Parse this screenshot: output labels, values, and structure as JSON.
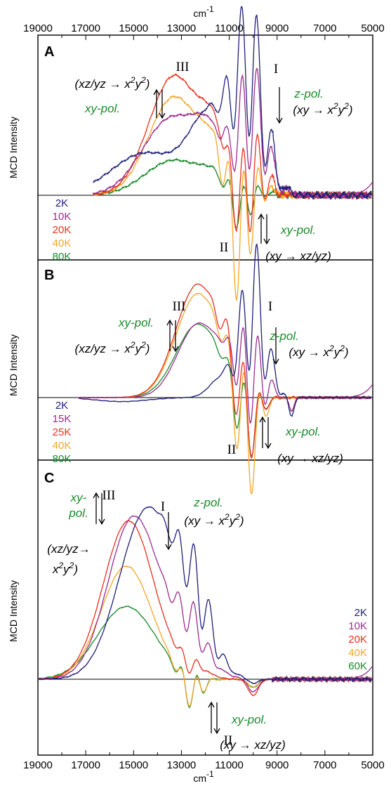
{
  "chart_data": {
    "type": "line",
    "top_axis_label": "cm-1",
    "bottom_axis_label": "cm-1",
    "x_ticks": [
      "19000",
      "17000",
      "15000",
      "13000",
      "11000",
      "9000",
      "7000",
      "5000"
    ],
    "xlim": [
      19000,
      5000
    ],
    "x_reversed": true,
    "ylabel": "MCD Intensity",
    "grid": false,
    "panels": [
      {
        "label": "A",
        "legend_position": "bottom-left",
        "series": [
          {
            "name": "2K",
            "color": "#1f1f7a"
          },
          {
            "name": "10K",
            "color": "#9b2d8e"
          },
          {
            "name": "20K",
            "color": "#e8301e"
          },
          {
            "name": "40K",
            "color": "#f5a623"
          },
          {
            "name": "80K",
            "color": "#1a8a2a"
          }
        ],
        "bands": [
          {
            "id": "I",
            "pol": "z-pol.",
            "transition": "(xy → x²y²)"
          },
          {
            "id": "II",
            "pol": "xy-pol.",
            "transition": "(xy → xz/yz)"
          },
          {
            "id": "III",
            "pol": "xy-pol.",
            "transition": "(xz/yz → x²y²)"
          }
        ]
      },
      {
        "label": "B",
        "legend_position": "bottom-left",
        "series": [
          {
            "name": "2K",
            "color": "#1f1f7a"
          },
          {
            "name": "15K",
            "color": "#9b2d8e"
          },
          {
            "name": "25K",
            "color": "#e8301e"
          },
          {
            "name": "40K",
            "color": "#f5a623"
          },
          {
            "name": "80K",
            "color": "#1a8a2a"
          }
        ],
        "bands": [
          {
            "id": "I",
            "pol": "z-pol.",
            "transition": "(xy → x²y²)"
          },
          {
            "id": "II",
            "pol": "xy-pol.",
            "transition": "(xy → xz/yz)"
          },
          {
            "id": "III",
            "pol": "xy-pol.",
            "transition": "(xz/yz → x²y²)"
          }
        ]
      },
      {
        "label": "C",
        "legend_position": "right",
        "series": [
          {
            "name": "2K",
            "color": "#1f1f7a"
          },
          {
            "name": "10K",
            "color": "#9b2d8e"
          },
          {
            "name": "20K",
            "color": "#e8301e"
          },
          {
            "name": "40K",
            "color": "#f5a623"
          },
          {
            "name": "60K",
            "color": "#1a8a2a"
          }
        ],
        "bands": [
          {
            "id": "I",
            "pol": "z-pol.",
            "transition": "(xy → x²y²)"
          },
          {
            "id": "II",
            "pol": "xy-pol.",
            "transition": "(xy → xz/yz)"
          },
          {
            "id": "III",
            "pol": "xy- pol.",
            "transition": "(xz/yz → x²y²)"
          }
        ]
      }
    ]
  }
}
